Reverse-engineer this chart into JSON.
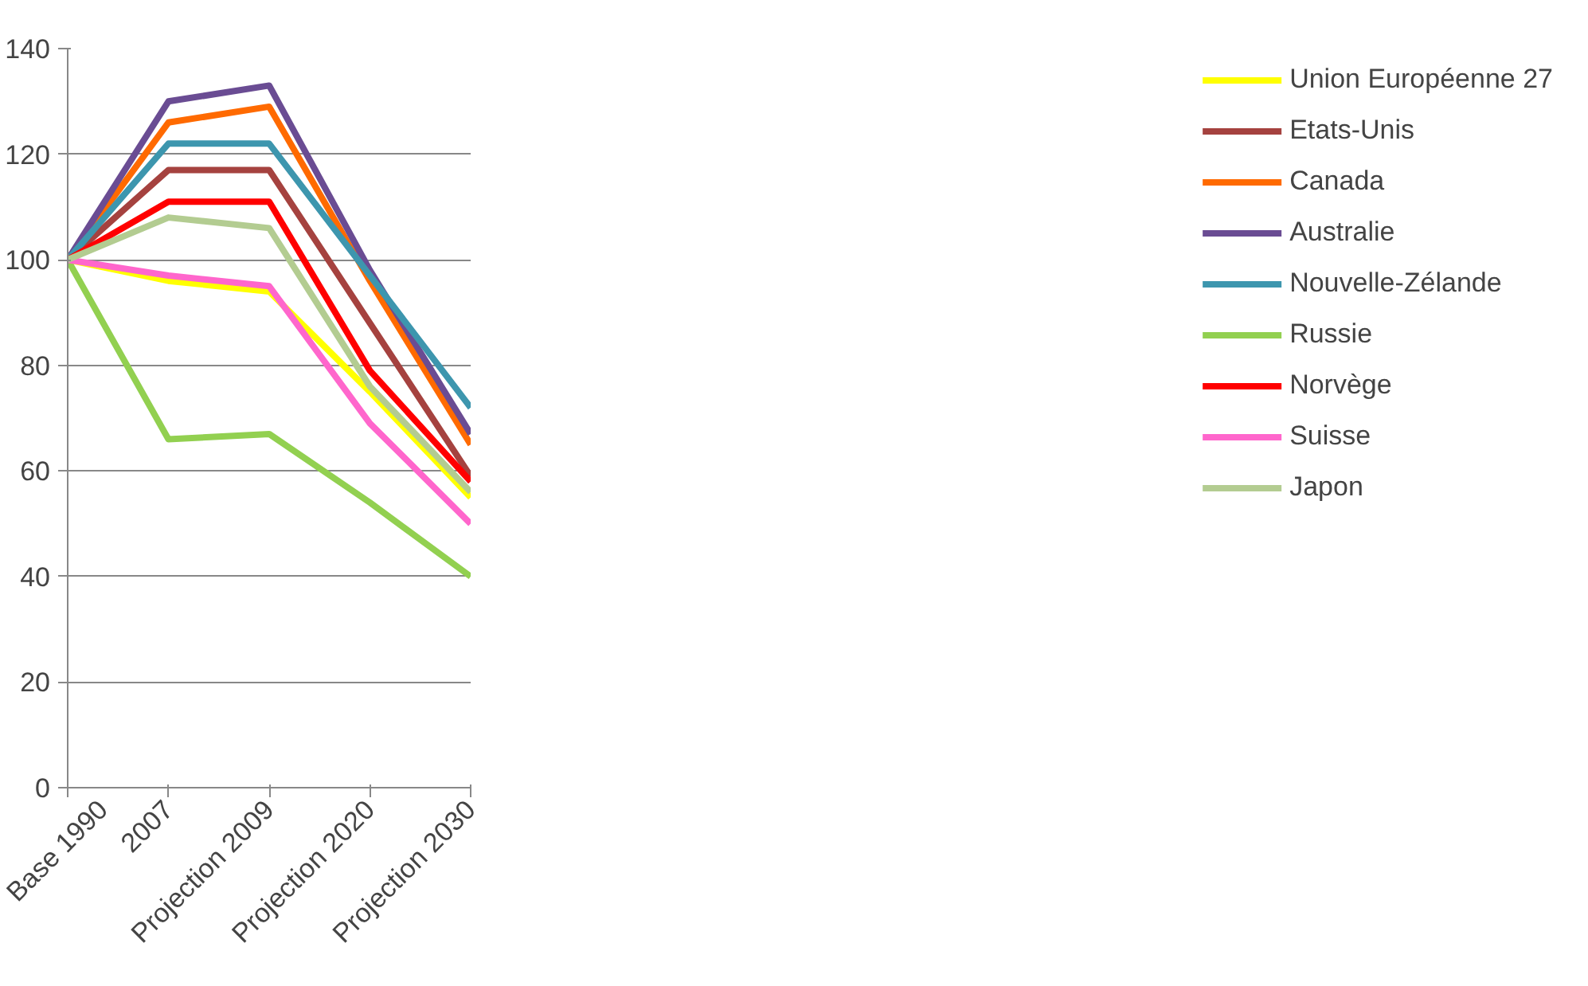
{
  "chart_data": {
    "type": "line",
    "categories": [
      "Base 1990",
      "2007",
      "Projection 2009",
      "Projection 2020",
      "Projection 2030"
    ],
    "ylim": [
      0,
      140
    ],
    "yticks": [
      0,
      20,
      40,
      60,
      80,
      100,
      120,
      140
    ],
    "grid": "y",
    "legend": "right",
    "marker": "none",
    "series": [
      {
        "name": "Union Européenne 27",
        "color": "#ffff00",
        "values": [
          100,
          96,
          94,
          75,
          55
        ]
      },
      {
        "name": "Etats-Unis",
        "color": "#a5423f",
        "values": [
          100,
          117,
          117,
          88,
          59
        ]
      },
      {
        "name": "Canada",
        "color": "#ff6a00",
        "values": [
          100,
          126,
          129,
          96,
          65
        ]
      },
      {
        "name": "Australie",
        "color": "#6a4c93",
        "values": [
          100,
          130,
          133,
          98,
          67
        ]
      },
      {
        "name": "Nouvelle-Zélande",
        "color": "#3d96ae",
        "values": [
          100,
          122,
          122,
          97,
          72
        ]
      },
      {
        "name": "Russie",
        "color": "#92d050",
        "values": [
          100,
          66,
          67,
          54,
          40
        ]
      },
      {
        "name": "Norvège",
        "color": "#ff0000",
        "values": [
          100,
          111,
          111,
          79,
          58
        ]
      },
      {
        "name": "Suisse",
        "color": "#ff66cc",
        "values": [
          100,
          97,
          95,
          69,
          50
        ]
      },
      {
        "name": "Japon",
        "color": "#b3cc91",
        "values": [
          100,
          108,
          106,
          76,
          56
        ]
      }
    ]
  }
}
